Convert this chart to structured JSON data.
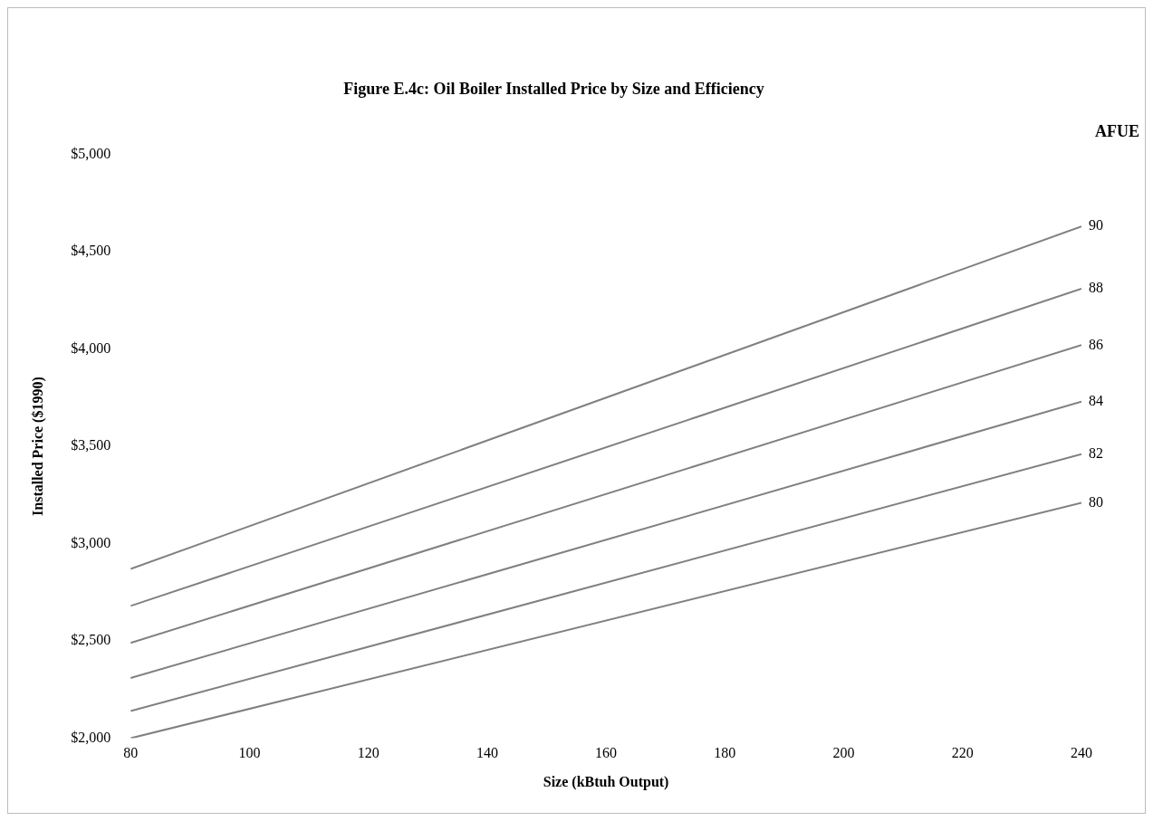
{
  "chart_data": {
    "type": "line",
    "title": "Figure E.4c: Oil Boiler Installed Price by Size and Efficiency",
    "xlabel": "Size (kBtuh Output)",
    "ylabel": "Installed Price ($1990)",
    "legend_title": "AFUE",
    "x": [
      80,
      240
    ],
    "series": [
      {
        "name": "90",
        "color": "#808080",
        "values": [
          2870,
          4630
        ]
      },
      {
        "name": "88",
        "color": "#808080",
        "values": [
          2680,
          4310
        ]
      },
      {
        "name": "86",
        "color": "#808080",
        "values": [
          2490,
          4020
        ]
      },
      {
        "name": "84",
        "color": "#808080",
        "values": [
          2310,
          3730
        ]
      },
      {
        "name": "82",
        "color": "#808080",
        "values": [
          2140,
          3460
        ]
      },
      {
        "name": "80",
        "color": "#808080",
        "values": [
          2000,
          3210
        ]
      }
    ],
    "xlim": [
      80,
      240
    ],
    "xticks": [
      80,
      100,
      120,
      140,
      160,
      180,
      200,
      220,
      240
    ],
    "ylim": [
      2000,
      5000
    ],
    "yticks": [
      {
        "value": 2000,
        "label": "$2,000"
      },
      {
        "value": 2500,
        "label": "$2,500"
      },
      {
        "value": 3000,
        "label": "$3,000"
      },
      {
        "value": 3500,
        "label": "$3,500"
      },
      {
        "value": 4000,
        "label": "$4,000"
      },
      {
        "value": 4500,
        "label": "$4,500"
      },
      {
        "value": 5000,
        "label": "$5,000"
      }
    ],
    "grid": false,
    "legend": false,
    "marker": "none",
    "line_style": "solid"
  }
}
